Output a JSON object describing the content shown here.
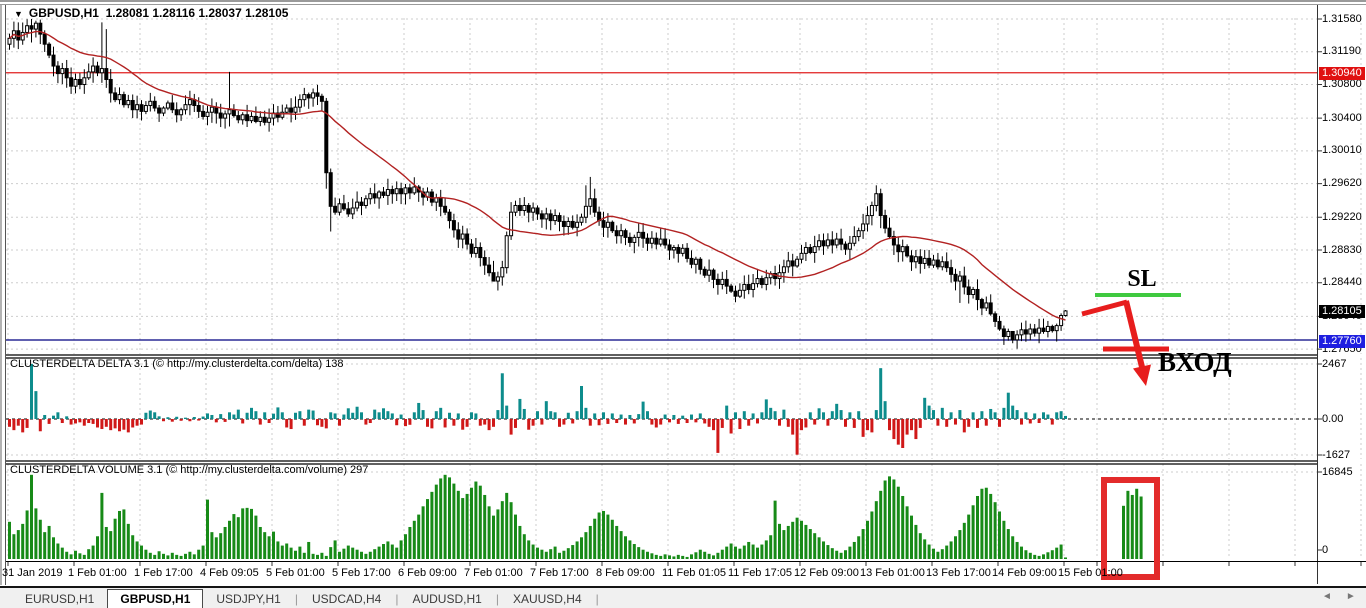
{
  "window": {
    "dropdown_glyph": "▼",
    "symbol": "GBPUSD,H1",
    "ohlc": "1.28081 1.28116 1.28037 1.28105"
  },
  "main_chart": {
    "price_axis_labels": [
      "1.31580",
      "1.31190",
      "1.30800",
      "1.30400",
      "1.30010",
      "1.29620",
      "1.29220",
      "1.28830",
      "1.28440",
      "1.28040",
      "1.27650"
    ],
    "resistance_level": {
      "price": 1.3094,
      "label": "1.30940"
    },
    "current_price": {
      "price": 1.28105,
      "label": "1.28105"
    },
    "support_level": {
      "price": 1.2776,
      "label": "1.27760"
    },
    "ma_period": 24,
    "candles": {
      "closes": [
        1.3135,
        1.3144,
        1.3133,
        1.3142,
        1.315,
        1.3146,
        1.3153,
        1.314,
        1.3128,
        1.3115,
        1.3102,
        1.3093,
        1.3099,
        1.3088,
        1.3078,
        1.3086,
        1.308,
        1.3088,
        1.3095,
        1.3102,
        1.3094,
        1.3099,
        1.3086,
        1.307,
        1.3062,
        1.3068,
        1.3056,
        1.3061,
        1.305,
        1.3056,
        1.3048,
        1.3055,
        1.306,
        1.3052,
        1.3046,
        1.3052,
        1.3058,
        1.305,
        1.3044,
        1.305,
        1.3056,
        1.3062,
        1.3055,
        1.3048,
        1.3042,
        1.3047,
        1.3053,
        1.3046,
        1.304,
        1.3045,
        1.305,
        1.3043,
        1.3038,
        1.3044,
        1.3037,
        1.3042,
        1.3036,
        1.3041,
        1.3035,
        1.304,
        1.3046,
        1.3041,
        1.3047,
        1.3052,
        1.3047,
        1.3053,
        1.3062,
        1.3068,
        1.3064,
        1.307,
        1.3066,
        1.306,
        1.2975,
        1.2935,
        1.2928,
        1.2938,
        1.2932,
        1.2926,
        1.2933,
        1.294,
        1.2936,
        1.2944,
        1.295,
        1.2945,
        1.2952,
        1.2948,
        1.2955,
        1.295,
        1.2956,
        1.295,
        1.2957,
        1.2951,
        1.2958,
        1.2952,
        1.2946,
        1.2952,
        1.294,
        1.2945,
        1.2935,
        1.2928,
        1.2918,
        1.2907,
        1.2896,
        1.2902,
        1.289,
        1.2879,
        1.2886,
        1.2874,
        1.2865,
        1.2856,
        1.2846,
        1.2851,
        1.2862,
        1.29,
        1.2928,
        1.2936,
        1.293,
        1.2936,
        1.2928,
        1.2933,
        1.2926,
        1.292,
        1.2926,
        1.2918,
        1.2924,
        1.2917,
        1.2911,
        1.2917,
        1.291,
        1.2916,
        1.2922,
        1.2935,
        1.2944,
        1.2928,
        1.2918,
        1.291,
        1.2916,
        1.2906,
        1.29,
        1.2906,
        1.2898,
        1.2892,
        1.2898,
        1.2904,
        1.2897,
        1.2891,
        1.2897,
        1.289,
        1.2896,
        1.2889,
        1.2883,
        1.2886,
        1.2879,
        1.2885,
        1.2873,
        1.2866,
        1.2872,
        1.286,
        1.2853,
        1.2859,
        1.2848,
        1.2842,
        1.2848,
        1.284,
        1.2834,
        1.2828,
        1.2835,
        1.2842,
        1.2836,
        1.2843,
        1.2849,
        1.2842,
        1.285,
        1.2855,
        1.2849,
        1.2856,
        1.2863,
        1.287,
        1.2864,
        1.2872,
        1.2879,
        1.2886,
        1.288,
        1.2887,
        1.2894,
        1.2888,
        1.2895,
        1.2889,
        1.2896,
        1.289,
        1.2884,
        1.2891,
        1.2899,
        1.2906,
        1.2914,
        1.2924,
        1.2936,
        1.295,
        1.2924,
        1.2909,
        1.2899,
        1.2889,
        1.2881,
        1.2887,
        1.2876,
        1.2869,
        1.2875,
        1.2867,
        1.2873,
        1.2865,
        1.2871,
        1.2863,
        1.2869,
        1.2862,
        1.2854,
        1.2846,
        1.2852,
        1.2839,
        1.283,
        1.2836,
        1.2824,
        1.2814,
        1.282,
        1.2807,
        1.2798,
        1.2789,
        1.278,
        1.2786,
        1.2776,
        1.2782,
        1.2788,
        1.2783,
        1.2789,
        1.2784,
        1.279,
        1.2786,
        1.2792,
        1.2787,
        1.2793,
        1.2805,
        1.28105
      ],
      "wick_overrides": {
        "5": [
          1.3158,
          1.313
        ],
        "6": [
          1.3156,
          1.3136
        ],
        "21": [
          1.3154,
          1.3082
        ],
        "22": [
          1.3146,
          1.3076
        ],
        "50": [
          1.3095,
          1.303
        ],
        "72": [
          1.3064,
          1.2956
        ],
        "73": [
          1.298,
          1.2905
        ],
        "110": [
          1.287,
          1.2847
        ],
        "113": [
          1.2905,
          1.2855
        ],
        "114": [
          1.294,
          1.2895
        ],
        "131": [
          1.296,
          1.2915
        ],
        "132": [
          1.297,
          1.2925
        ],
        "197": [
          1.296,
          1.2929
        ],
        "198": [
          1.2956,
          1.2909
        ],
        "216": [
          1.2858,
          1.282
        ],
        "226": [
          1.2793,
          1.277
        ],
        "228": [
          1.2786,
          1.2772
        ],
        "240": [
          1.28116,
          1.28037
        ]
      }
    }
  },
  "annotations": {
    "sl_label": "SL",
    "entry_label": "ВХОД"
  },
  "delta_panel": {
    "header": "CLUSTERDELTA DELTA 3.1 (© http://my.clusterdelta.com/delta) 138",
    "axis_max": "2467",
    "axis_zero": "0.00",
    "axis_min": "-1627",
    "values": [
      -350,
      -500,
      -300,
      -600,
      -400,
      2467,
      1250,
      -550,
      180,
      -220,
      150,
      300,
      -180,
      120,
      -250,
      -200,
      -150,
      -300,
      -180,
      -220,
      -380,
      -450,
      -350,
      -500,
      -420,
      -550,
      -480,
      -600,
      -380,
      -300,
      -250,
      280,
      380,
      300,
      120,
      -100,
      80,
      -120,
      100,
      -80,
      60,
      -100,
      90,
      -70,
      110,
      250,
      180,
      -150,
      220,
      -130,
      300,
      200,
      420,
      -200,
      280,
      500,
      350,
      -250,
      300,
      -180,
      240,
      520,
      300,
      -380,
      -450,
      280,
      350,
      -300,
      420,
      380,
      -280,
      -350,
      -420,
      300,
      250,
      -300,
      200,
      480,
      280,
      550,
      300,
      -250,
      -180,
      420,
      300,
      480,
      350,
      250,
      -280,
      200,
      -320,
      -260,
      300,
      720,
      400,
      -350,
      -420,
      350,
      500,
      -380,
      280,
      -300,
      250,
      -480,
      -350,
      300,
      250,
      -300,
      -250,
      -500,
      -350,
      400,
      2050,
      600,
      -700,
      -400,
      900,
      450,
      -480,
      -300,
      350,
      -250,
      800,
      350,
      300,
      -350,
      -250,
      280,
      -200,
      350,
      1480,
      500,
      -300,
      250,
      -280,
      300,
      -220,
      250,
      -180,
      200,
      -250,
      180,
      -200,
      220,
      780,
      350,
      -250,
      -380,
      -250,
      200,
      -150,
      180,
      -220,
      150,
      -180,
      200,
      -150,
      250,
      -200,
      -350,
      -500,
      -1520,
      -400,
      600,
      -650,
      300,
      -450,
      350,
      -300,
      250,
      -200,
      300,
      880,
      500,
      350,
      -300,
      420,
      -350,
      -700,
      -1600,
      -500,
      -380,
      300,
      -250,
      480,
      300,
      -300,
      350,
      680,
      400,
      -350,
      300,
      -400,
      350,
      -800,
      -500,
      -600,
      400,
      2280,
      800,
      -500,
      -900,
      -1150,
      -1300,
      -700,
      -500,
      -900,
      -400,
      950,
      600,
      400,
      -300,
      500,
      -350,
      300,
      -250,
      400,
      -600,
      -350,
      300,
      -400,
      350,
      -300,
      450,
      300,
      -350,
      500,
      1180,
      600,
      400,
      -250,
      300,
      -200,
      250,
      -180,
      300,
      200,
      -250,
      300,
      350,
      138
    ]
  },
  "volume_panel": {
    "header": "CLUSTERDELTA VOLUME 3.1 (© http://my.clusterdelta.com/volume) 297",
    "axis_max": "16845",
    "axis_min": "0",
    "values": [
      7200,
      4800,
      5600,
      6800,
      9400,
      16300,
      9800,
      7600,
      5200,
      6400,
      4200,
      3000,
      2200,
      1400,
      900,
      1600,
      1100,
      800,
      1900,
      2600,
      4400,
      12800,
      6200,
      5400,
      7800,
      9300,
      9600,
      6800,
      4600,
      3400,
      2600,
      1800,
      1200,
      800,
      1500,
      1000,
      700,
      1200,
      800,
      600,
      1000,
      1400,
      900,
      1800,
      2600,
      11500,
      5200,
      4200,
      5000,
      6200,
      7400,
      8700,
      8100,
      9800,
      9900,
      9700,
      8400,
      6200,
      5200,
      4400,
      5300,
      3400,
      2600,
      3000,
      2200,
      1600,
      2400,
      1200,
      3300,
      1000,
      800,
      1200,
      600,
      2300,
      3600,
      1400,
      2000,
      2600,
      2200,
      1800,
      1400,
      1000,
      1400,
      1900,
      2400,
      2900,
      3400,
      2800,
      2200,
      3600,
      4800,
      6200,
      7400,
      8600,
      10200,
      11600,
      13000,
      14400,
      15600,
      16300,
      15800,
      14600,
      13200,
      11800,
      12600,
      13800,
      15000,
      14200,
      12400,
      10200,
      8400,
      9600,
      11200,
      12800,
      11000,
      8600,
      6400,
      4800,
      3600,
      2800,
      2200,
      1800,
      1400,
      1900,
      2400,
      1200,
      1600,
      2100,
      2700,
      3400,
      4200,
      5200,
      6400,
      7800,
      9000,
      9300,
      8600,
      7600,
      6400,
      5400,
      4400,
      3600,
      2900,
      2300,
      1800,
      1400,
      1100,
      800,
      600,
      900,
      700,
      500,
      800,
      600,
      400,
      900,
      1300,
      1800,
      1400,
      1000,
      700,
      1200,
      1800,
      2400,
      3000,
      2400,
      2000,
      2600,
      3300,
      2800,
      2200,
      2800,
      3600,
      4600,
      11300,
      6800,
      5600,
      6400,
      7200,
      8000,
      7400,
      6600,
      5800,
      5000,
      4200,
      3400,
      2700,
      2100,
      1600,
      1200,
      1700,
      2400,
      3300,
      4400,
      5800,
      7400,
      9200,
      11200,
      13200,
      15200,
      16000,
      15400,
      14000,
      12200,
      10200,
      8400,
      6600,
      5000,
      3800,
      2800,
      2000,
      1400,
      1900,
      2600,
      3400,
      4400,
      5600,
      7000,
      8600,
      10400,
      12200,
      13600,
      13800,
      12600,
      11000,
      9200,
      7400,
      5800,
      4400,
      3300,
      2400,
      1700,
      1200,
      800,
      600,
      900,
      1300,
      1700,
      2200,
      2800,
      297
    ],
    "highlight_values": [
      10300,
      13200,
      12400,
      13600,
      12100
    ]
  },
  "time_axis": {
    "labels": [
      "31 Jan 2019",
      "1 Feb 01:00",
      "1 Feb 17:00",
      "4 Feb 09:05",
      "5 Feb 01:00",
      "5 Feb 17:00",
      "6 Feb 09:00",
      "7 Feb 01:00",
      "7 Feb 17:00",
      "8 Feb 09:00",
      "11 Feb 01:05",
      "11 Feb 17:05",
      "12 Feb 09:00",
      "13 Feb 01:00",
      "13 Feb 17:00",
      "14 Feb 09:00",
      "15 Feb 01:00"
    ]
  },
  "tabs": {
    "items": [
      {
        "label": "EURUSD,H1",
        "active": false
      },
      {
        "label": "GBPUSD,H1",
        "active": true
      },
      {
        "label": "USDJPY,H1",
        "active": false
      },
      {
        "label": "USDCAD,H4",
        "active": false
      },
      {
        "label": "AUDUSD,H1",
        "active": false
      },
      {
        "label": "XAUUSD,H4",
        "active": false
      }
    ],
    "scroll_left": "◄",
    "scroll_right": "►"
  },
  "colors": {
    "candle_up": "#ffffff",
    "candle_down": "#000000",
    "wick": "#000000",
    "ma": "#b22222",
    "grid": "#cdcdcd",
    "resistance": "#e02020",
    "support_line": "#000080",
    "delta_pos": "#0d8c8c",
    "delta_neg": "#d01818",
    "zero_line": "#000000",
    "volume": "#178a17",
    "annotation_red": "#e71d1d",
    "annotation_green": "#3fc93f",
    "highlight_box": "#e32b2b",
    "label_red_bg": "#e01010",
    "label_black_bg": "#000000",
    "label_blue_bg": "#1e1ee0"
  }
}
